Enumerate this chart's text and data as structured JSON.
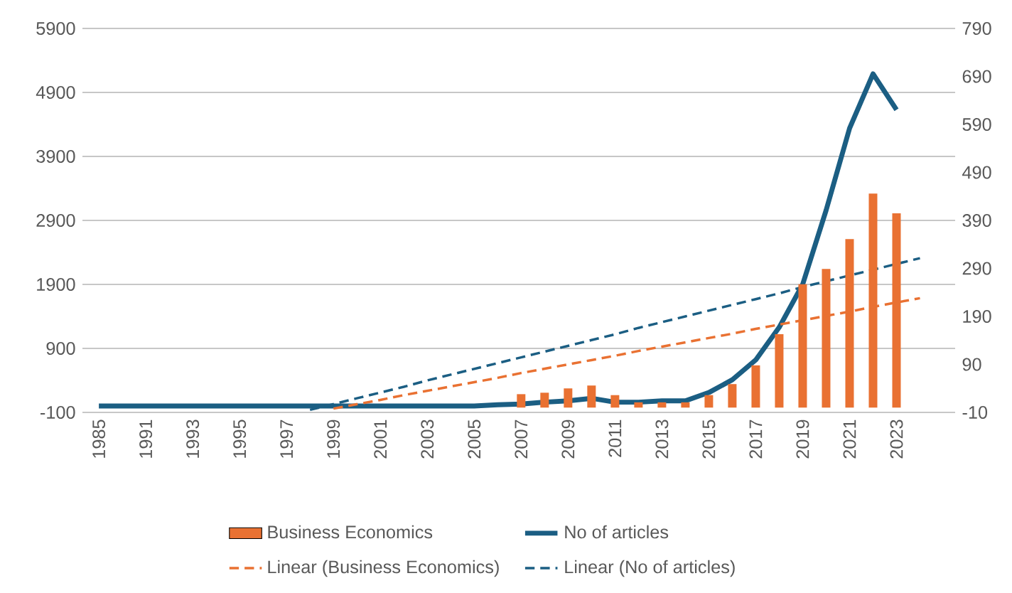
{
  "chart_data": {
    "type": "bar",
    "categories": [
      "1985",
      null,
      "1991",
      null,
      "1993",
      null,
      "1995",
      null,
      "1997",
      null,
      "1999",
      null,
      "2001",
      null,
      "2003",
      null,
      "2005",
      null,
      "2007",
      null,
      "2009",
      null,
      "2011",
      null,
      "2013",
      null,
      "2015",
      null,
      "2017",
      null,
      "2019",
      null,
      "2021",
      null,
      "2023",
      null,
      null
    ],
    "series": [
      {
        "name": "Business Economics",
        "axis": "y2",
        "color": "#e97132",
        "values": [
          0,
          0,
          0,
          0,
          0,
          0,
          0,
          0,
          0,
          0,
          0,
          0,
          0,
          0,
          0,
          0,
          0,
          0,
          28,
          31,
          40,
          46,
          26,
          11,
          11,
          11,
          26,
          49,
          88,
          153,
          257,
          289,
          351,
          446,
          405,
          null,
          null
        ]
      },
      {
        "name": "No of articles",
        "type": "line",
        "color": "#1b5e83",
        "line_style": "solid",
        "values": [
          0,
          0,
          0,
          0,
          0,
          0,
          0,
          0,
          0,
          0,
          0,
          0,
          0,
          0,
          0,
          0,
          0,
          20,
          30,
          60,
          80,
          120,
          60,
          60,
          80,
          80,
          210,
          410,
          720,
          1230,
          1900,
          3060,
          4340,
          5190,
          4630,
          null,
          null
        ]
      },
      {
        "name": "Linear (Business Economics)",
        "type": "line",
        "axis": "y2",
        "color": "#e97132",
        "line_style": "dashed",
        "values": [
          null,
          null,
          null,
          null,
          null,
          null,
          null,
          null,
          null,
          null,
          -2,
          7,
          16,
          26,
          35,
          44,
          53,
          62,
          72,
          81,
          90,
          99,
          108,
          118,
          127,
          136,
          145,
          154,
          164,
          173,
          182,
          191,
          200,
          210,
          219,
          228,
          null
        ]
      },
      {
        "name": "Linear (No of articles)",
        "type": "line",
        "color": "#1b5e83",
        "line_style": "dashed",
        "values": [
          null,
          null,
          null,
          null,
          null,
          null,
          null,
          null,
          null,
          -60,
          30,
          120,
          210,
          300,
          400,
          490,
          580,
          670,
          760,
          850,
          940,
          1030,
          1120,
          1220,
          1310,
          1400,
          1490,
          1580,
          1670,
          1760,
          1860,
          1950,
          2040,
          2130,
          2220,
          2310,
          null
        ]
      }
    ],
    "ylim": [
      -100,
      5900
    ],
    "yticks": [
      -100,
      900,
      1900,
      2900,
      3900,
      4900,
      5900
    ],
    "y2lim": [
      -10,
      790
    ],
    "y2ticks": [
      -10,
      90,
      190,
      290,
      390,
      490,
      590,
      690,
      790
    ],
    "grid": "y",
    "legend": "bottom",
    "marker": "none"
  }
}
